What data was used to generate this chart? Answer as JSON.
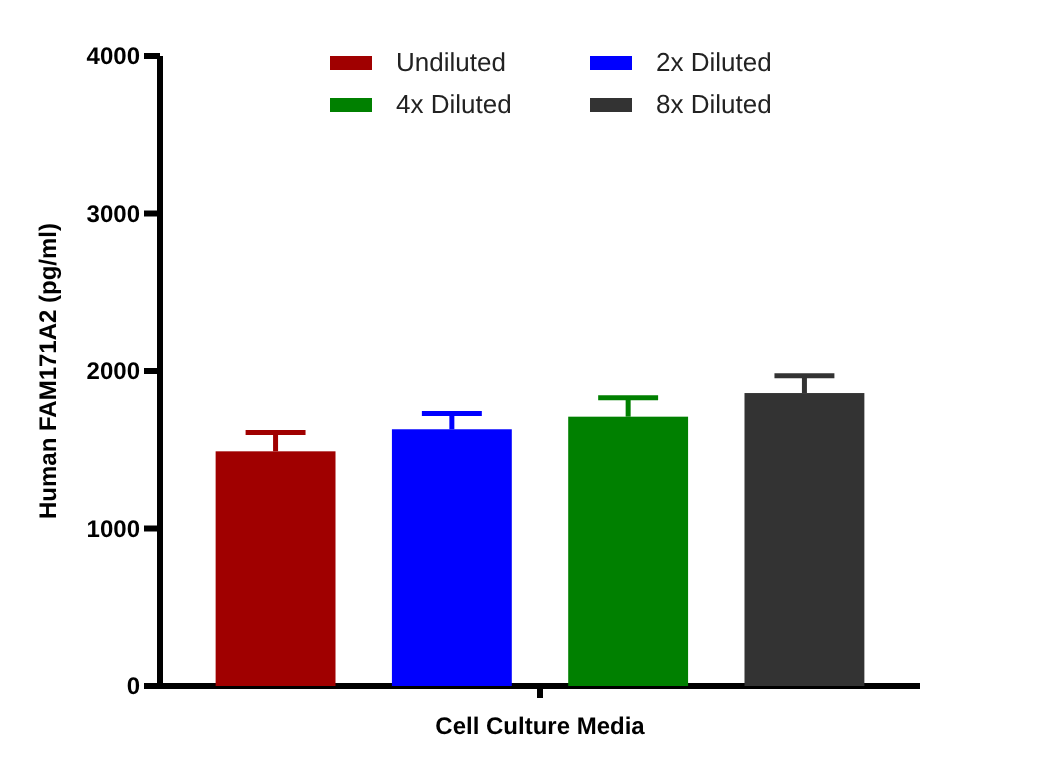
{
  "chart_data": {
    "type": "bar",
    "xlabel": "Cell Culture Media",
    "ylabel": "Human FAM171A2 (pg/ml)",
    "categories": [
      null
    ],
    "ylim": [
      0,
      4000
    ],
    "yticks": [
      0,
      1000,
      2000,
      3000,
      4000
    ],
    "grid": false,
    "legend": "top",
    "series": [
      {
        "name": "Undiluted",
        "color": "#a00000",
        "values": [
          1490
        ],
        "errors": [
          [
            1490,
            1610
          ]
        ]
      },
      {
        "name": "2x Diluted",
        "color": "#0000ff",
        "values": [
          1630
        ],
        "errors": [
          [
            1630,
            1730
          ]
        ]
      },
      {
        "name": "4x Diluted",
        "color": "#008000",
        "values": [
          1710
        ],
        "errors": [
          [
            1710,
            1830
          ]
        ]
      },
      {
        "name": "8x Diluted",
        "color": "#333333",
        "values": [
          1860
        ],
        "errors": [
          [
            1860,
            1970
          ]
        ]
      }
    ]
  }
}
